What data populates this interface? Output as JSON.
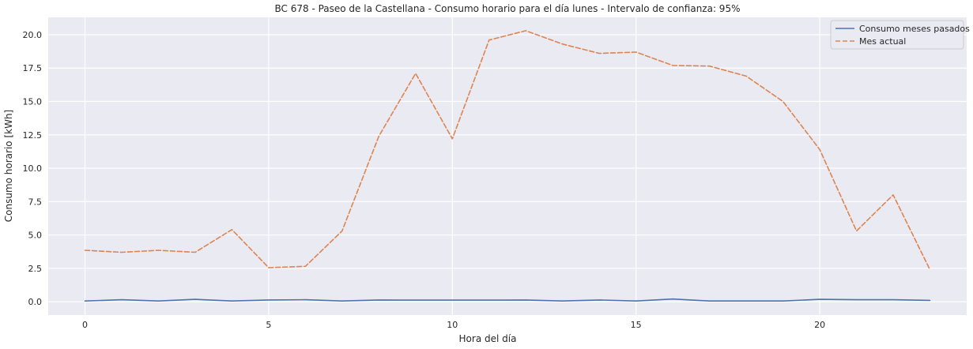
{
  "chart_data": {
    "type": "line",
    "title": "BC 678 - Paseo de la Castellana - Consumo horario para el día lunes - Intervalo de confianza: 95%",
    "xlabel": "Hora del día",
    "ylabel": "Consumo horario [kWh]",
    "xlim": [
      -1,
      24
    ],
    "ylim": [
      -1.0,
      21.3
    ],
    "xticks": [
      0,
      5,
      10,
      15,
      20
    ],
    "yticks": [
      0.0,
      2.5,
      5.0,
      7.5,
      10.0,
      12.5,
      15.0,
      17.5,
      20.0
    ],
    "grid": true,
    "legend_position": "top-right",
    "x": [
      0,
      1,
      2,
      3,
      4,
      5,
      6,
      7,
      8,
      9,
      10,
      11,
      12,
      13,
      14,
      15,
      16,
      17,
      18,
      19,
      20,
      21,
      22,
      23
    ],
    "series": [
      {
        "name": "Consumo meses pasados",
        "color": "#4c72b0",
        "style": "solid",
        "values": [
          0.05,
          0.15,
          0.05,
          0.18,
          0.05,
          0.13,
          0.15,
          0.05,
          0.13,
          0.12,
          0.12,
          0.12,
          0.13,
          0.05,
          0.13,
          0.05,
          0.2,
          0.05,
          0.05,
          0.05,
          0.18,
          0.15,
          0.15,
          0.1
        ]
      },
      {
        "name": "Mes actual",
        "color": "#dd8452",
        "style": "dashed",
        "values": [
          3.85,
          3.7,
          3.85,
          3.7,
          5.4,
          2.55,
          2.65,
          5.3,
          12.4,
          17.1,
          12.2,
          19.6,
          20.3,
          19.3,
          18.6,
          18.7,
          17.7,
          17.65,
          16.9,
          15.0,
          11.4,
          5.3,
          8.0,
          2.4
        ]
      }
    ]
  }
}
